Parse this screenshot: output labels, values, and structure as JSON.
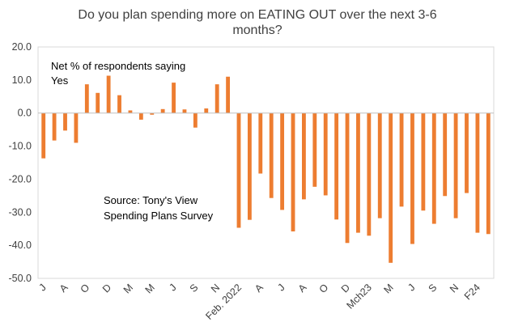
{
  "chart_data": {
    "type": "bar",
    "title_lines": [
      "Do you plan spending more on EATING OUT over the next 3-6",
      "months?"
    ],
    "annotation_lines": [
      "Net % of respondents saying",
      "Yes"
    ],
    "source_lines": [
      "Source: Tony's View",
      "Spending Plans Survey"
    ],
    "ylim": [
      -50,
      20
    ],
    "yticks": [
      "20.0",
      "10.0",
      "0.0",
      "-10.0",
      "-20.0",
      "-30.0",
      "-40.0",
      "-50.0"
    ],
    "ytick_values": [
      20,
      10,
      0,
      -10,
      -20,
      -30,
      -40,
      -50
    ],
    "xtick_labels": [
      "J",
      "A",
      "O",
      "D",
      "M",
      "M",
      "J",
      "S",
      "N",
      "Feb. 2022",
      "A",
      "J",
      "A",
      "O",
      "D",
      "Mch23",
      "M",
      "J",
      "S",
      "N",
      "F24"
    ],
    "xtick_indices": [
      0,
      2,
      4,
      6,
      8,
      10,
      12,
      14,
      16,
      18,
      20,
      22,
      24,
      26,
      28,
      30,
      32,
      34,
      36,
      38,
      40
    ],
    "values": [
      -13.7,
      -8.3,
      -5.3,
      -9.0,
      8.7,
      6.1,
      11.3,
      5.4,
      0.8,
      -2.0,
      -0.5,
      1.2,
      9.2,
      1.1,
      -4.4,
      1.4,
      8.7,
      11.0,
      -34.7,
      -32.3,
      -18.3,
      -25.7,
      -29.3,
      -35.8,
      -26.1,
      -22.3,
      -24.9,
      -32.2,
      -39.3,
      -36.2,
      -37.1,
      -31.8,
      -45.3,
      -28.3,
      -39.6,
      -29.5,
      -33.5,
      -25.1,
      -31.8,
      -24.2,
      -36.2,
      -36.6
    ],
    "bar_color": "#ED7D31"
  }
}
